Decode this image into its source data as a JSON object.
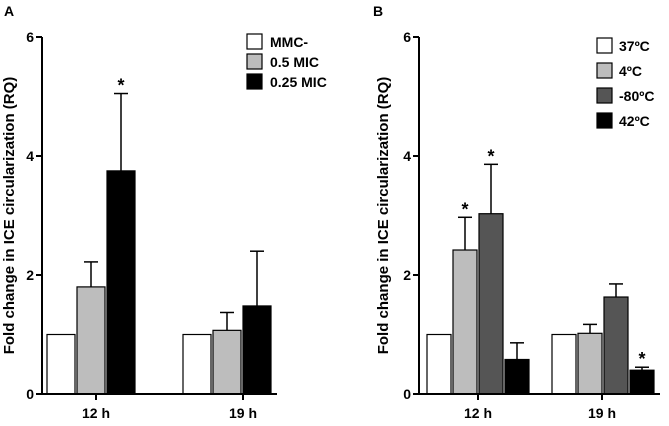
{
  "chart_data": [
    {
      "panel": "A",
      "type": "bar",
      "ylabel": "Fold change in ICE circularization (RQ)",
      "ylim": [
        0,
        6
      ],
      "yticks": [
        0,
        2,
        4,
        6
      ],
      "categories": [
        "12 h",
        "19 h"
      ],
      "series": [
        {
          "name": "MMC-",
          "color": "#ffffff",
          "values": [
            1.0,
            1.0
          ],
          "errors": [
            0,
            0
          ],
          "significant": [
            false,
            false
          ]
        },
        {
          "name": "0.5 MIC",
          "color": "#bdbdbd",
          "values": [
            1.8,
            1.07
          ],
          "errors": [
            0.42,
            0.3
          ],
          "significant": [
            false,
            false
          ]
        },
        {
          "name": "0.25 MIC",
          "color": "#000000",
          "values": [
            3.75,
            1.48
          ],
          "errors": [
            1.3,
            0.92
          ],
          "significant": [
            true,
            false
          ]
        }
      ],
      "legend_position": "top-right",
      "significance_mark": "*"
    },
    {
      "panel": "B",
      "type": "bar",
      "ylabel": "Fold change in ICE circularization (RQ)",
      "ylim": [
        0,
        6
      ],
      "yticks": [
        0,
        2,
        4,
        6
      ],
      "categories": [
        "12 h",
        "19 h"
      ],
      "series": [
        {
          "name": "37ºC",
          "color": "#ffffff",
          "values": [
            1.0,
            1.0
          ],
          "errors": [
            0,
            0
          ],
          "significant": [
            false,
            false
          ]
        },
        {
          "name": "4ºC",
          "color": "#bdbdbd",
          "values": [
            2.42,
            1.02
          ],
          "errors": [
            0.55,
            0.15
          ],
          "significant": [
            true,
            false
          ]
        },
        {
          "name": "-80ºC",
          "color": "#555555",
          "values": [
            3.03,
            1.63
          ],
          "errors": [
            0.83,
            0.22
          ],
          "significant": [
            true,
            false
          ]
        },
        {
          "name": "42ºC",
          "color": "#000000",
          "values": [
            0.58,
            0.4
          ],
          "errors": [
            0.28,
            0.05
          ],
          "significant": [
            false,
            true
          ]
        }
      ],
      "legend_position": "top-right",
      "significance_mark": "*"
    }
  ]
}
